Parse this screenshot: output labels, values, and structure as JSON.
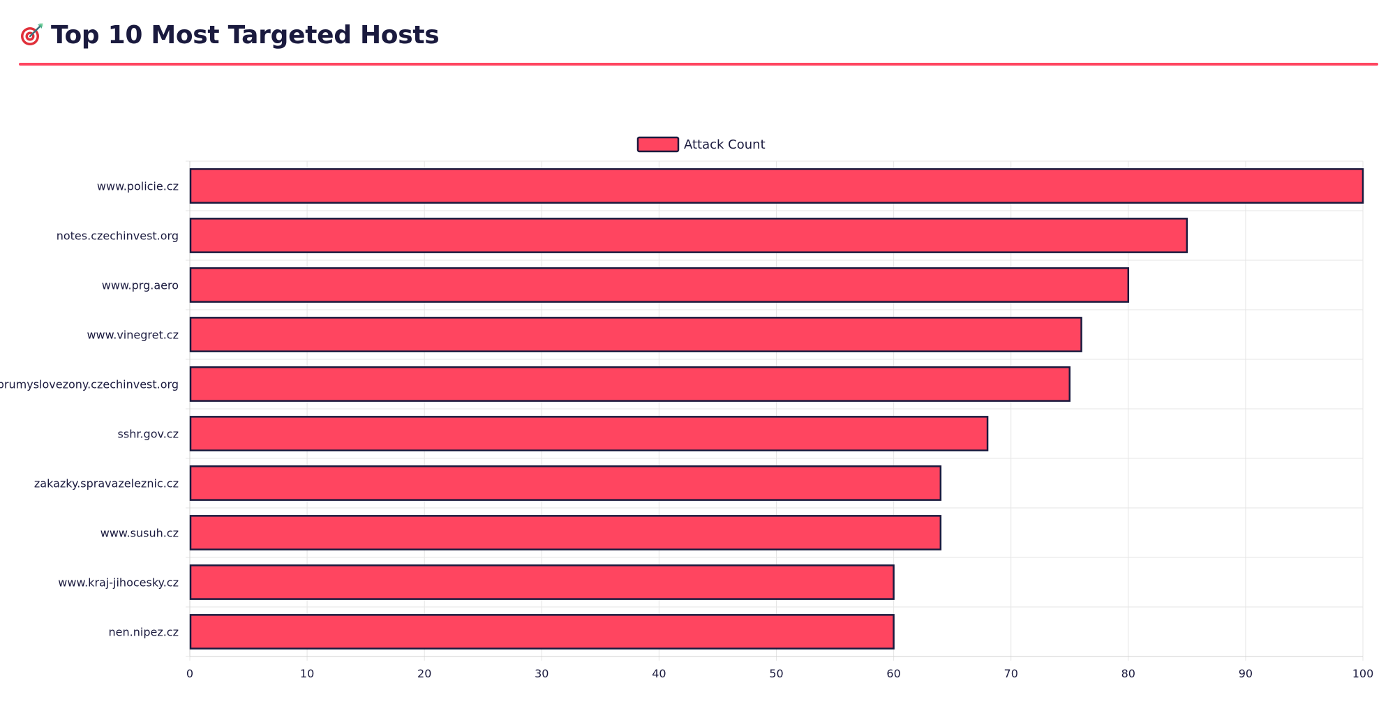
{
  "header": {
    "title": "Top 10 Most Targeted Hosts",
    "icon": "target-icon"
  },
  "colors": {
    "bar_fill": "#ff4560",
    "bar_stroke": "#1a1a3e",
    "title_color": "#1a1a3e",
    "accent_rule": "#ff4560",
    "grid": "#e5e5e5"
  },
  "chart_data": {
    "type": "bar",
    "orientation": "horizontal",
    "categories": [
      "www.policie.cz",
      "notes.czechinvest.org",
      "www.prg.aero",
      "www.vinegret.cz",
      "prumyslovezony.czechinvest.org",
      "sshr.gov.cz",
      "zakazky.spravazeleznic.cz",
      "www.susuh.cz",
      "www.kraj-jihocesky.cz",
      "nen.nipez.cz"
    ],
    "series": [
      {
        "name": "Attack Count",
        "values": [
          100,
          85,
          80,
          76,
          75,
          68,
          64,
          64,
          60,
          60
        ]
      }
    ],
    "xlim": [
      0,
      100
    ],
    "xticks": [
      0,
      10,
      20,
      30,
      40,
      50,
      60,
      70,
      80,
      90,
      100
    ],
    "grid": true,
    "legend_position": "top-center",
    "title": "",
    "xlabel": "",
    "ylabel": ""
  }
}
